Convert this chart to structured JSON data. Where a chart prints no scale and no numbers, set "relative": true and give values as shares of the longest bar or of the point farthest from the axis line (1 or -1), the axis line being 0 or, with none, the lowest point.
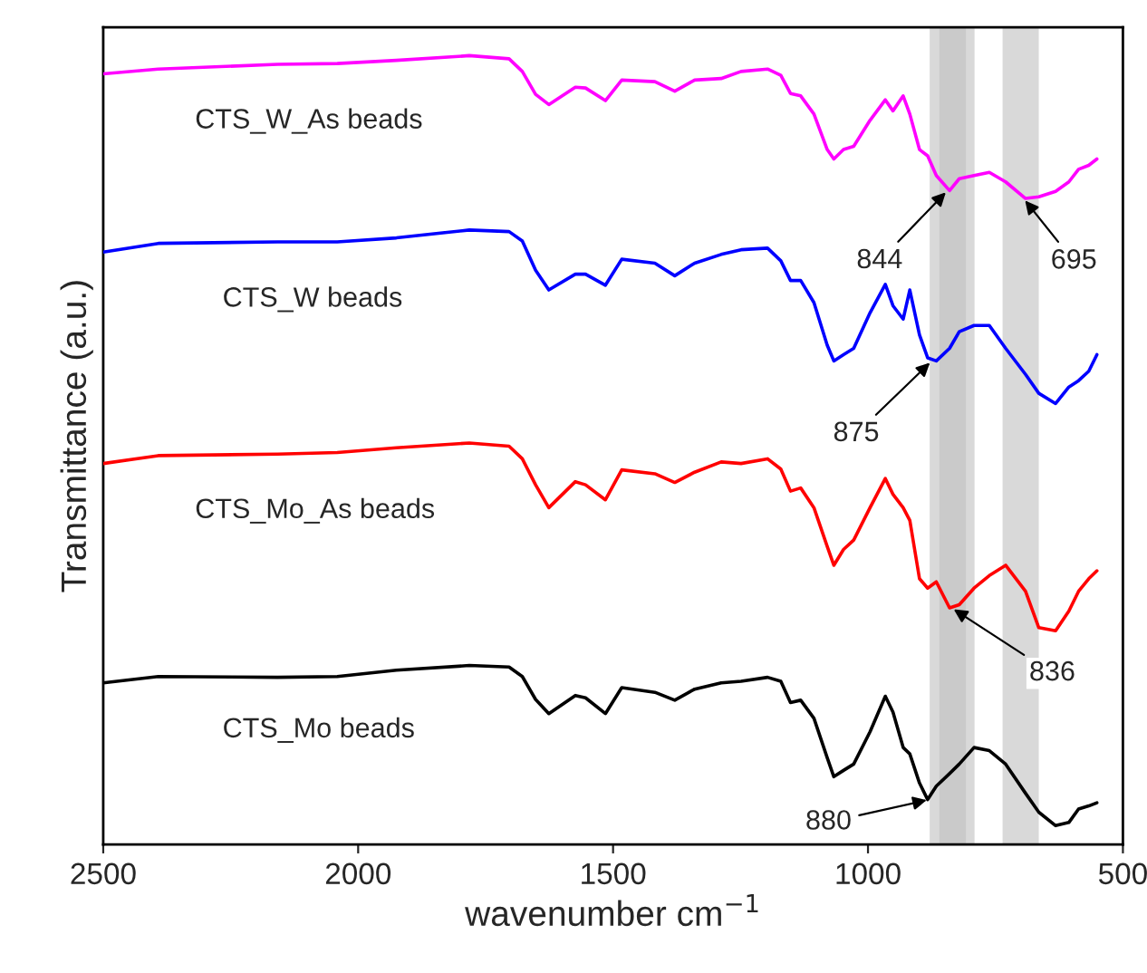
{
  "chart_data": {
    "type": "line",
    "relative": true,
    "xlabel": "wavenumber cm$^{−1}$",
    "ylabel": "Transmittance (a.u.)",
    "x": [
      2500,
      2392,
      2158,
      2041,
      1925,
      1782,
      1704,
      1678,
      1652,
      1626,
      1574,
      1554,
      1515,
      1483,
      1418,
      1379,
      1340,
      1288,
      1249,
      1197,
      1171,
      1152,
      1132,
      1106,
      1080,
      1067,
      1048,
      1028,
      996,
      966,
      951,
      931,
      918,
      899,
      883,
      866,
      840,
      821,
      792,
      762,
      730,
      691,
      665,
      632,
      606,
      587,
      567,
      551
    ],
    "xlim": [
      2500,
      500
    ],
    "xticks": [
      2500,
      2000,
      1500,
      1000,
      500
    ],
    "tick_labels": "x",
    "grid": false,
    "legend": false,
    "marker": "none",
    "line_style": "solid",
    "series": [
      {
        "name": "CTS_W_As beads",
        "color": "#ff00ff",
        "values": [
          0.977,
          0.983,
          0.989,
          0.99,
          0.994,
          1.0,
          0.996,
          0.98,
          0.951,
          0.938,
          0.96,
          0.959,
          0.943,
          0.969,
          0.967,
          0.955,
          0.969,
          0.971,
          0.98,
          0.983,
          0.975,
          0.952,
          0.949,
          0.926,
          0.881,
          0.869,
          0.881,
          0.885,
          0.918,
          0.944,
          0.93,
          0.949,
          0.926,
          0.881,
          0.873,
          0.848,
          0.829,
          0.844,
          0.848,
          0.852,
          0.84,
          0.819,
          0.821,
          0.828,
          0.84,
          0.856,
          0.861,
          0.869
        ]
      },
      {
        "name": "CTS_W beads",
        "color": "#0000ff",
        "values": [
          0.751,
          0.762,
          0.764,
          0.764,
          0.769,
          0.779,
          0.777,
          0.765,
          0.728,
          0.703,
          0.723,
          0.723,
          0.709,
          0.742,
          0.737,
          0.721,
          0.737,
          0.748,
          0.754,
          0.756,
          0.74,
          0.715,
          0.715,
          0.687,
          0.633,
          0.613,
          0.621,
          0.629,
          0.674,
          0.71,
          0.683,
          0.666,
          0.703,
          0.646,
          0.617,
          0.613,
          0.629,
          0.65,
          0.658,
          0.658,
          0.629,
          0.596,
          0.572,
          0.559,
          0.58,
          0.588,
          0.6,
          0.621
        ]
      },
      {
        "name": "CTS_Mo_As beads",
        "color": "#ff0000",
        "values": [
          0.483,
          0.493,
          0.495,
          0.497,
          0.503,
          0.509,
          0.505,
          0.489,
          0.456,
          0.427,
          0.46,
          0.456,
          0.437,
          0.475,
          0.47,
          0.459,
          0.472,
          0.485,
          0.483,
          0.489,
          0.476,
          0.448,
          0.452,
          0.427,
          0.378,
          0.354,
          0.374,
          0.386,
          0.427,
          0.464,
          0.444,
          0.427,
          0.411,
          0.337,
          0.325,
          0.333,
          0.3,
          0.304,
          0.325,
          0.341,
          0.354,
          0.321,
          0.275,
          0.271,
          0.296,
          0.321,
          0.337,
          0.347
        ]
      },
      {
        "name": "CTS_Mo beads",
        "color": "#000000",
        "values": [
          0.205,
          0.213,
          0.212,
          0.213,
          0.221,
          0.227,
          0.225,
          0.213,
          0.184,
          0.166,
          0.189,
          0.186,
          0.166,
          0.199,
          0.193,
          0.183,
          0.197,
          0.205,
          0.207,
          0.212,
          0.207,
          0.18,
          0.183,
          0.16,
          0.11,
          0.086,
          0.094,
          0.102,
          0.143,
          0.188,
          0.168,
          0.123,
          0.115,
          0.078,
          0.057,
          0.074,
          0.09,
          0.102,
          0.123,
          0.119,
          0.102,
          0.065,
          0.041,
          0.024,
          0.028,
          0.045,
          0.049,
          0.053
        ]
      }
    ],
    "bands": [
      {
        "axis": "x",
        "from": 879,
        "to": 808,
        "color": "#c0c0c0"
      },
      {
        "axis": "x",
        "from": 736,
        "to": 665,
        "color": "#c0c0c0"
      },
      {
        "axis": "x",
        "from": 860,
        "to": 791,
        "color": "#c0c0c0"
      }
    ],
    "annotations": [
      {
        "text": "844",
        "x": 844,
        "y": 0.829
      },
      {
        "text": "695",
        "x": 695,
        "y": 0.819
      },
      {
        "text": "875",
        "x": 875,
        "y": 0.613
      },
      {
        "text": "836",
        "x": 836,
        "y": 0.3
      },
      {
        "text": "880",
        "x": 880,
        "y": 0.057
      }
    ]
  }
}
